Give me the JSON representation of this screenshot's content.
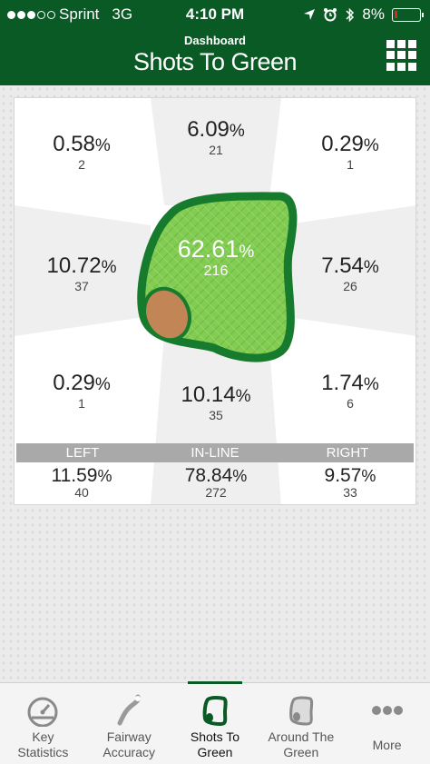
{
  "status": {
    "carrier": "Sprint",
    "network": "3G",
    "time": "4:10 PM",
    "battery": "8%"
  },
  "header": {
    "subtitle": "Dashboard",
    "title": "Shots To Green"
  },
  "grid": {
    "top_left": {
      "pct": "0.58",
      "count": "2"
    },
    "top_center": {
      "pct": "6.09",
      "count": "21"
    },
    "top_right": {
      "pct": "0.29",
      "count": "1"
    },
    "mid_left": {
      "pct": "10.72",
      "count": "37"
    },
    "center": {
      "pct": "62.61",
      "count": "216"
    },
    "mid_right": {
      "pct": "7.54",
      "count": "26"
    },
    "bottom_left": {
      "pct": "0.29",
      "count": "1"
    },
    "bottom_center": {
      "pct": "10.14",
      "count": "35"
    },
    "bottom_right": {
      "pct": "1.74",
      "count": "6"
    }
  },
  "summary": {
    "left": {
      "label": "LEFT",
      "pct": "11.59",
      "count": "40"
    },
    "inline": {
      "label": "IN-LINE",
      "pct": "78.84",
      "count": "272"
    },
    "right": {
      "label": "RIGHT",
      "pct": "9.57",
      "count": "33"
    }
  },
  "percent_symbol": "%",
  "tabs": [
    {
      "label_1": "Key",
      "label_2": "Statistics",
      "icon": "speedometer-icon"
    },
    {
      "label_1": "Fairway",
      "label_2": "Accuracy",
      "icon": "fairway-icon"
    },
    {
      "label_1": "Shots To",
      "label_2": "Green",
      "icon": "green-icon"
    },
    {
      "label_1": "Around The",
      "label_2": "Green",
      "icon": "around-green-icon"
    },
    {
      "label_1": "More",
      "icon": "more-icon"
    }
  ],
  "colors": {
    "header": "#0a5a25",
    "green_fill": "#7cc94e",
    "green_border": "#1f7a2e",
    "bunker": "#c68b5a"
  }
}
